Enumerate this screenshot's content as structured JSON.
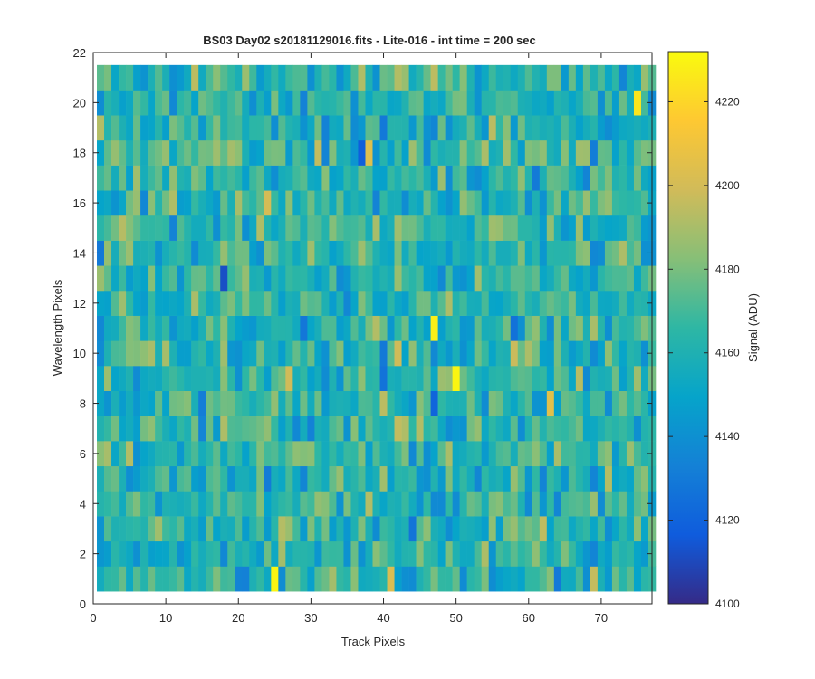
{
  "chart_data": {
    "type": "heatmap",
    "title": "BS03 Day02  s20181129016.fits - Lite-016 - int time = 200 sec",
    "xlabel": "Track Pixels",
    "ylabel": "Wavelength Pixels",
    "colorbar_label": "Signal (ADU)",
    "xlim": [
      0,
      77
    ],
    "ylim": [
      0,
      22
    ],
    "x_ticks": [
      "0",
      "10",
      "20",
      "30",
      "40",
      "50",
      "60",
      "70"
    ],
    "y_ticks": [
      "0",
      "2",
      "4",
      "6",
      "8",
      "10",
      "12",
      "14",
      "16",
      "18",
      "20",
      "22"
    ],
    "colorbar_range": [
      4100,
      4232
    ],
    "colorbar_ticks": [
      "4100",
      "4120",
      "4140",
      "4160",
      "4180",
      "4200",
      "4220"
    ],
    "colormap": "parula",
    "grid": "matrix 77 x 21, track pixels 1-77, wavelength pixels 1-21",
    "notable_pixels": [
      {
        "x": 24.5,
        "y": 1,
        "value": 4230
      },
      {
        "x": 49.5,
        "y": 8.5,
        "value": 4230
      },
      {
        "x": 46.5,
        "y": 10.5,
        "value": 4228
      },
      {
        "x": 74.5,
        "y": 19.5,
        "value": 4225
      },
      {
        "x": 17.5,
        "y": 12.5,
        "value": 4112
      },
      {
        "x": 36.5,
        "y": 17.5,
        "value": 4118
      }
    ]
  }
}
